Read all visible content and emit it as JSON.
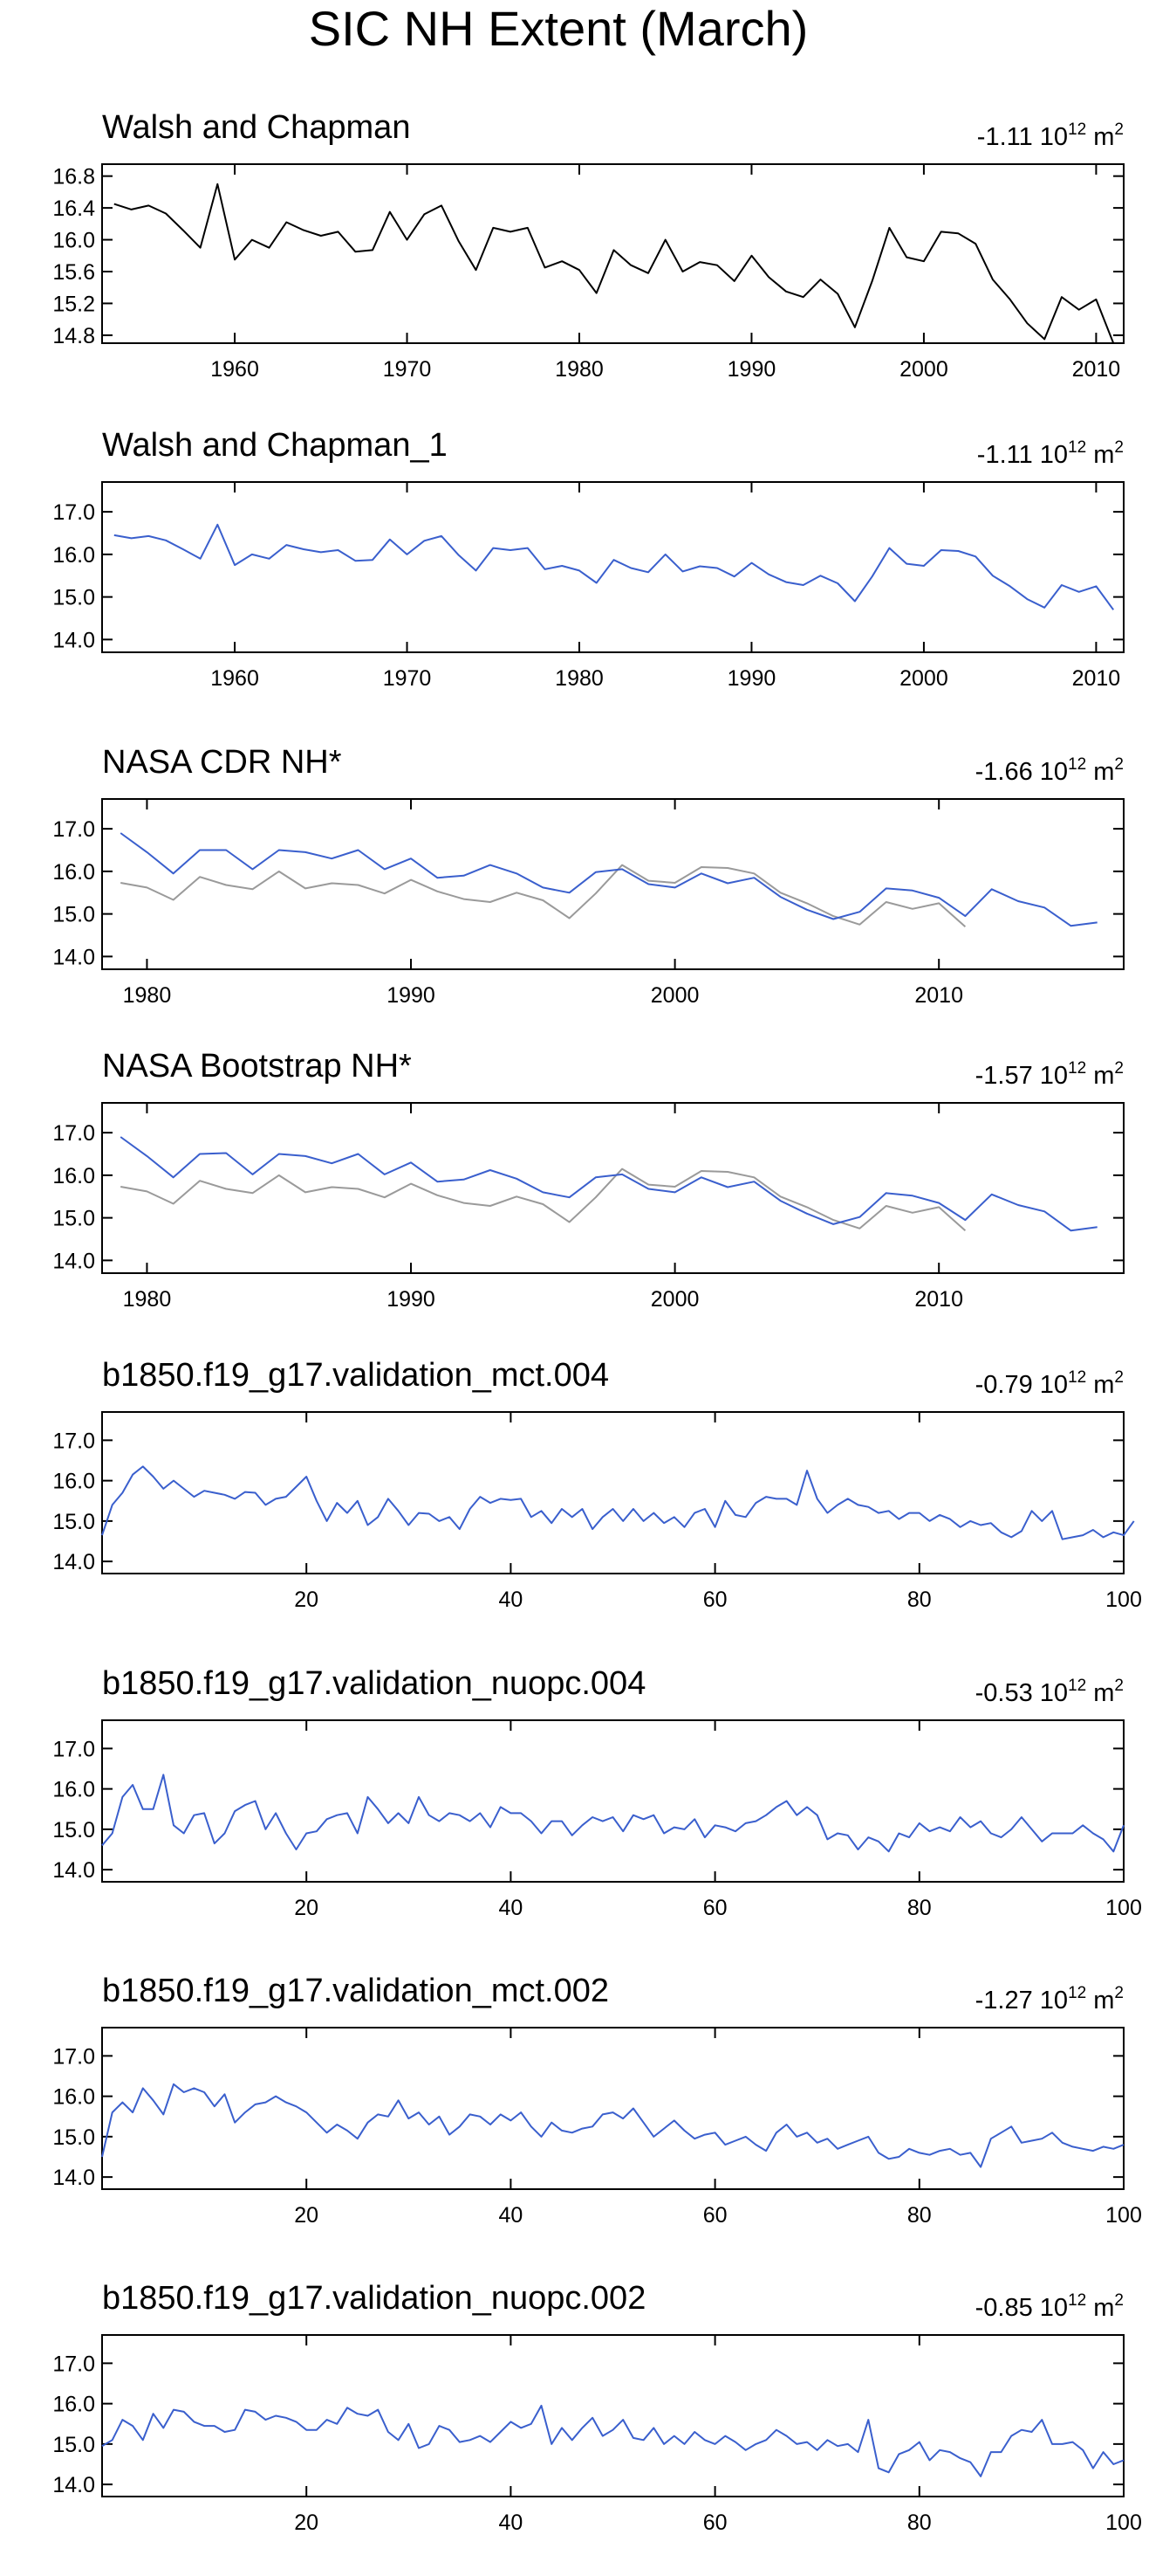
{
  "title": "SIC NH Extent (March)",
  "colors": {
    "model": "#3a5fcd",
    "obs": "#9a9a9a",
    "black": "#000000"
  },
  "chart_data": [
    {
      "type": "line",
      "title": "Walsh and Chapman",
      "trend": {
        "value": "-1.11",
        "base": "10",
        "exp": "12",
        "unit": "m",
        "unit_exp": "2"
      },
      "xlim": [
        1952.3,
        2011.6
      ],
      "ylim": [
        14.7,
        16.95
      ],
      "xticks": [
        1960,
        1970,
        1980,
        1990,
        2000,
        2010
      ],
      "yticks": [
        14.8,
        15.2,
        15.6,
        16.0,
        16.4,
        16.8
      ],
      "ytick_labels": [
        "14.8",
        "15.2",
        "15.6",
        "16.0",
        "16.4",
        "16.8"
      ],
      "series": [
        {
          "name": "Walsh and Chapman",
          "color": "#000000",
          "x_start": 1953,
          "values": [
            16.45,
            16.38,
            16.43,
            16.33,
            16.12,
            15.9,
            16.7,
            15.75,
            16.0,
            15.9,
            16.22,
            16.12,
            16.05,
            16.1,
            15.85,
            15.87,
            16.35,
            16.0,
            16.32,
            16.43,
            15.98,
            15.62,
            16.15,
            16.1,
            16.15,
            15.65,
            15.73,
            15.62,
            15.33,
            15.87,
            15.68,
            15.58,
            16.0,
            15.6,
            15.72,
            15.68,
            15.48,
            15.8,
            15.53,
            15.35,
            15.28,
            15.5,
            15.32,
            14.9,
            15.48,
            16.15,
            15.78,
            15.73,
            16.1,
            16.08,
            15.95,
            15.5,
            15.25,
            14.95,
            14.75,
            15.28,
            15.12,
            15.25,
            14.7
          ]
        }
      ]
    },
    {
      "type": "line",
      "title": "Walsh and Chapman_1",
      "trend": {
        "value": "-1.11",
        "base": "10",
        "exp": "12",
        "unit": "m",
        "unit_exp": "2"
      },
      "xlim": [
        1952.3,
        2011.6
      ],
      "ylim": [
        13.7,
        17.7
      ],
      "xticks": [
        1960,
        1970,
        1980,
        1990,
        2000,
        2010
      ],
      "yticks": [
        14,
        15,
        16,
        17
      ],
      "ytick_labels": [
        "14.0",
        "15.0",
        "16.0",
        "17.0"
      ],
      "series": [
        {
          "name": "Walsh and Chapman_1",
          "color": "#3a5fcd",
          "x_start": 1953,
          "values": [
            16.45,
            16.38,
            16.43,
            16.33,
            16.12,
            15.9,
            16.7,
            15.75,
            16.0,
            15.9,
            16.22,
            16.12,
            16.05,
            16.1,
            15.85,
            15.87,
            16.35,
            16.0,
            16.32,
            16.43,
            15.98,
            15.62,
            16.15,
            16.1,
            16.15,
            15.65,
            15.73,
            15.62,
            15.33,
            15.87,
            15.68,
            15.58,
            16.0,
            15.6,
            15.72,
            15.68,
            15.48,
            15.8,
            15.53,
            15.35,
            15.28,
            15.5,
            15.32,
            14.9,
            15.48,
            16.15,
            15.78,
            15.73,
            16.1,
            16.08,
            15.95,
            15.5,
            15.25,
            14.95,
            14.75,
            15.28,
            15.12,
            15.25,
            14.7
          ]
        }
      ]
    },
    {
      "type": "line",
      "title": "NASA CDR NH*",
      "trend": {
        "value": "-1.66",
        "base": "10",
        "exp": "12",
        "unit": "m",
        "unit_exp": "2"
      },
      "xlim": [
        1978.3,
        2017.0
      ],
      "ylim": [
        13.7,
        17.7
      ],
      "xticks": [
        1980,
        1990,
        2000,
        2010
      ],
      "yticks": [
        14,
        15,
        16,
        17
      ],
      "ytick_labels": [
        "14.0",
        "15.0",
        "16.0",
        "17.0"
      ],
      "series": [
        {
          "name": "Walsh and Chapman",
          "color": "#9a9a9a",
          "x_start": 1979,
          "values": [
            15.73,
            15.62,
            15.33,
            15.87,
            15.68,
            15.58,
            16.0,
            15.6,
            15.72,
            15.68,
            15.48,
            15.8,
            15.53,
            15.35,
            15.28,
            15.5,
            15.32,
            14.9,
            15.48,
            16.15,
            15.78,
            15.73,
            16.1,
            16.08,
            15.95,
            15.5,
            15.25,
            14.95,
            14.75,
            15.28,
            15.12,
            15.25,
            14.7
          ]
        },
        {
          "name": "NASA CDR NH",
          "color": "#3a5fcd",
          "x_start": 1979,
          "values": [
            16.9,
            16.45,
            15.95,
            16.5,
            16.5,
            16.05,
            16.5,
            16.45,
            16.3,
            16.5,
            16.05,
            16.3,
            15.85,
            15.9,
            16.15,
            15.95,
            15.62,
            15.5,
            15.98,
            16.05,
            15.7,
            15.62,
            15.95,
            15.72,
            15.85,
            15.4,
            15.1,
            14.88,
            15.05,
            15.6,
            15.55,
            15.38,
            14.95,
            15.58,
            15.3,
            15.15,
            14.72,
            14.8
          ]
        }
      ]
    },
    {
      "type": "line",
      "title": "NASA Bootstrap NH*",
      "trend": {
        "value": "-1.57",
        "base": "10",
        "exp": "12",
        "unit": "m",
        "unit_exp": "2"
      },
      "xlim": [
        1978.3,
        2017.0
      ],
      "ylim": [
        13.7,
        17.7
      ],
      "xticks": [
        1980,
        1990,
        2000,
        2010
      ],
      "yticks": [
        14,
        15,
        16,
        17
      ],
      "ytick_labels": [
        "14.0",
        "15.0",
        "16.0",
        "17.0"
      ],
      "series": [
        {
          "name": "Walsh and Chapman",
          "color": "#9a9a9a",
          "x_start": 1979,
          "values": [
            15.73,
            15.62,
            15.33,
            15.87,
            15.68,
            15.58,
            16.0,
            15.6,
            15.72,
            15.68,
            15.48,
            15.8,
            15.53,
            15.35,
            15.28,
            15.5,
            15.32,
            14.9,
            15.48,
            16.15,
            15.78,
            15.73,
            16.1,
            16.08,
            15.95,
            15.5,
            15.25,
            14.95,
            14.75,
            15.28,
            15.12,
            15.25,
            14.7
          ]
        },
        {
          "name": "NASA Bootstrap NH",
          "color": "#3a5fcd",
          "x_start": 1979,
          "values": [
            16.9,
            16.45,
            15.95,
            16.5,
            16.52,
            16.02,
            16.5,
            16.45,
            16.28,
            16.5,
            16.02,
            16.3,
            15.85,
            15.9,
            16.12,
            15.92,
            15.6,
            15.48,
            15.95,
            16.02,
            15.68,
            15.6,
            15.95,
            15.72,
            15.85,
            15.4,
            15.1,
            14.85,
            15.02,
            15.58,
            15.52,
            15.35,
            14.95,
            15.55,
            15.3,
            15.15,
            14.7,
            14.78
          ]
        }
      ]
    },
    {
      "type": "line",
      "title": "b1850.f19_g17.validation_mct.004",
      "trend": {
        "value": "-0.79",
        "base": "10",
        "exp": "12",
        "unit": "m",
        "unit_exp": "2"
      },
      "xlim": [
        0,
        100
      ],
      "ylim": [
        13.7,
        17.7
      ],
      "xticks": [
        20,
        40,
        60,
        80,
        100
      ],
      "yticks": [
        14,
        15,
        16,
        17
      ],
      "ytick_labels": [
        "14.0",
        "15.0",
        "16.0",
        "17.0"
      ],
      "series": [
        {
          "name": "b1850.f19_g17.validation_mct.004",
          "color": "#3a5fcd",
          "x_start": 0,
          "values": [
            14.65,
            15.4,
            15.7,
            16.15,
            16.35,
            16.1,
            15.8,
            16.0,
            15.8,
            15.6,
            15.75,
            15.7,
            15.65,
            15.55,
            15.72,
            15.7,
            15.4,
            15.55,
            15.6,
            15.85,
            16.1,
            15.5,
            15.0,
            15.45,
            15.2,
            15.5,
            14.9,
            15.1,
            15.55,
            15.25,
            14.9,
            15.2,
            15.18,
            15.0,
            15.1,
            14.8,
            15.3,
            15.6,
            15.45,
            15.55,
            15.52,
            15.55,
            15.1,
            15.25,
            14.95,
            15.3,
            15.1,
            15.3,
            14.8,
            15.1,
            15.3,
            15.0,
            15.3,
            15.0,
            15.2,
            14.95,
            15.1,
            14.85,
            15.2,
            15.3,
            14.85,
            15.5,
            15.15,
            15.1,
            15.45,
            15.6,
            15.55,
            15.55,
            15.4,
            16.25,
            15.55,
            15.2,
            15.4,
            15.55,
            15.4,
            15.35,
            15.2,
            15.25,
            15.05,
            15.2,
            15.2,
            15.0,
            15.15,
            15.05,
            14.85,
            15.0,
            14.9,
            14.95,
            14.72,
            14.6,
            14.75,
            15.25,
            15.0,
            15.25,
            14.55,
            14.6,
            14.65,
            14.78,
            14.6,
            14.72,
            14.65,
            15.0
          ]
        }
      ]
    },
    {
      "type": "line",
      "title": "b1850.f19_g17.validation_nuopc.004",
      "trend": {
        "value": "-0.53",
        "base": "10",
        "exp": "12",
        "unit": "m",
        "unit_exp": "2"
      },
      "xlim": [
        0,
        100
      ],
      "ylim": [
        13.7,
        17.7
      ],
      "xticks": [
        20,
        40,
        60,
        80,
        100
      ],
      "yticks": [
        14,
        15,
        16,
        17
      ],
      "ytick_labels": [
        "14.0",
        "15.0",
        "16.0",
        "17.0"
      ],
      "series": [
        {
          "name": "b1850.f19_g17.validation_nuopc.004",
          "color": "#3a5fcd",
          "x_start": 0,
          "values": [
            14.6,
            14.9,
            15.8,
            16.1,
            15.5,
            15.5,
            16.35,
            15.1,
            14.9,
            15.35,
            15.4,
            14.65,
            14.9,
            15.45,
            15.6,
            15.7,
            15.0,
            15.4,
            14.9,
            14.5,
            14.9,
            14.95,
            15.25,
            15.35,
            15.4,
            14.9,
            15.8,
            15.5,
            15.15,
            15.4,
            15.15,
            15.8,
            15.35,
            15.2,
            15.4,
            15.35,
            15.2,
            15.4,
            15.05,
            15.55,
            15.4,
            15.4,
            15.2,
            14.9,
            15.2,
            15.2,
            14.85,
            15.1,
            15.3,
            15.2,
            15.3,
            14.95,
            15.35,
            15.25,
            15.35,
            14.9,
            15.05,
            15.0,
            15.25,
            14.8,
            15.1,
            15.05,
            14.95,
            15.15,
            15.2,
            15.35,
            15.55,
            15.7,
            15.35,
            15.55,
            15.35,
            14.75,
            14.9,
            14.85,
            14.5,
            14.8,
            14.7,
            14.45,
            14.9,
            14.8,
            15.15,
            14.95,
            15.05,
            14.95,
            15.3,
            15.05,
            15.2,
            14.9,
            14.8,
            15.0,
            15.3,
            15.0,
            14.7,
            14.9,
            14.9,
            14.9,
            15.1,
            14.9,
            14.75,
            14.45,
            15.1
          ]
        }
      ]
    },
    {
      "type": "line",
      "title": "b1850.f19_g17.validation_mct.002",
      "trend": {
        "value": "-1.27",
        "base": "10",
        "exp": "12",
        "unit": "m",
        "unit_exp": "2"
      },
      "xlim": [
        0,
        100
      ],
      "ylim": [
        13.7,
        17.7
      ],
      "xticks": [
        20,
        40,
        60,
        80,
        100
      ],
      "yticks": [
        14,
        15,
        16,
        17
      ],
      "ytick_labels": [
        "14.0",
        "15.0",
        "16.0",
        "17.0"
      ],
      "series": [
        {
          "name": "b1850.f19_g17.validation_mct.002",
          "color": "#3a5fcd",
          "x_start": 0,
          "values": [
            14.5,
            15.6,
            15.85,
            15.6,
            16.2,
            15.9,
            15.55,
            16.3,
            16.1,
            16.2,
            16.1,
            15.75,
            16.05,
            15.35,
            15.6,
            15.8,
            15.85,
            16.0,
            15.85,
            15.75,
            15.6,
            15.35,
            15.1,
            15.3,
            15.15,
            14.95,
            15.35,
            15.55,
            15.5,
            15.9,
            15.45,
            15.6,
            15.3,
            15.5,
            15.05,
            15.25,
            15.55,
            15.5,
            15.3,
            15.55,
            15.4,
            15.6,
            15.25,
            15.0,
            15.35,
            15.15,
            15.1,
            15.2,
            15.25,
            15.55,
            15.6,
            15.45,
            15.7,
            15.35,
            15.0,
            15.2,
            15.4,
            15.15,
            14.95,
            15.05,
            15.1,
            14.8,
            14.9,
            15.0,
            14.8,
            14.65,
            15.1,
            15.3,
            15.0,
            15.1,
            14.85,
            14.95,
            14.7,
            14.8,
            14.9,
            15.0,
            14.6,
            14.45,
            14.5,
            14.7,
            14.6,
            14.55,
            14.65,
            14.7,
            14.55,
            14.6,
            14.25,
            14.95,
            15.1,
            15.25,
            14.85,
            14.9,
            14.95,
            15.1,
            14.85,
            14.75,
            14.7,
            14.65,
            14.75,
            14.7,
            14.8
          ]
        }
      ]
    },
    {
      "type": "line",
      "title": "b1850.f19_g17.validation_nuopc.002",
      "trend": {
        "value": "-0.85",
        "base": "10",
        "exp": "12",
        "unit": "m",
        "unit_exp": "2"
      },
      "xlim": [
        0,
        100
      ],
      "ylim": [
        13.7,
        17.7
      ],
      "xticks": [
        20,
        40,
        60,
        80,
        100
      ],
      "yticks": [
        14,
        15,
        16,
        17
      ],
      "ytick_labels": [
        "14.0",
        "15.0",
        "16.0",
        "17.0"
      ],
      "series": [
        {
          "name": "b1850.f19_g17.validation_nuopc.002",
          "color": "#3a5fcd",
          "x_start": 0,
          "values": [
            14.95,
            15.1,
            15.6,
            15.45,
            15.1,
            15.75,
            15.4,
            15.85,
            15.8,
            15.55,
            15.45,
            15.45,
            15.3,
            15.35,
            15.85,
            15.8,
            15.6,
            15.7,
            15.65,
            15.55,
            15.35,
            15.35,
            15.6,
            15.5,
            15.9,
            15.75,
            15.7,
            15.85,
            15.3,
            15.1,
            15.5,
            14.9,
            15.0,
            15.45,
            15.35,
            15.05,
            15.1,
            15.2,
            15.05,
            15.3,
            15.55,
            15.4,
            15.5,
            15.95,
            15.0,
            15.4,
            15.1,
            15.4,
            15.65,
            15.2,
            15.35,
            15.6,
            15.15,
            15.1,
            15.4,
            15.0,
            15.2,
            15.0,
            15.3,
            15.1,
            15.0,
            15.2,
            15.05,
            14.85,
            15.0,
            15.1,
            15.35,
            15.2,
            15.0,
            15.05,
            14.85,
            15.1,
            14.95,
            15.0,
            14.8,
            15.6,
            14.4,
            14.3,
            14.75,
            14.85,
            15.05,
            14.6,
            14.85,
            14.8,
            14.65,
            14.55,
            14.2,
            14.8,
            14.8,
            15.2,
            15.35,
            15.3,
            15.6,
            15.0,
            15.0,
            15.05,
            14.85,
            14.4,
            14.8,
            14.5,
            14.6
          ]
        }
      ]
    }
  ]
}
